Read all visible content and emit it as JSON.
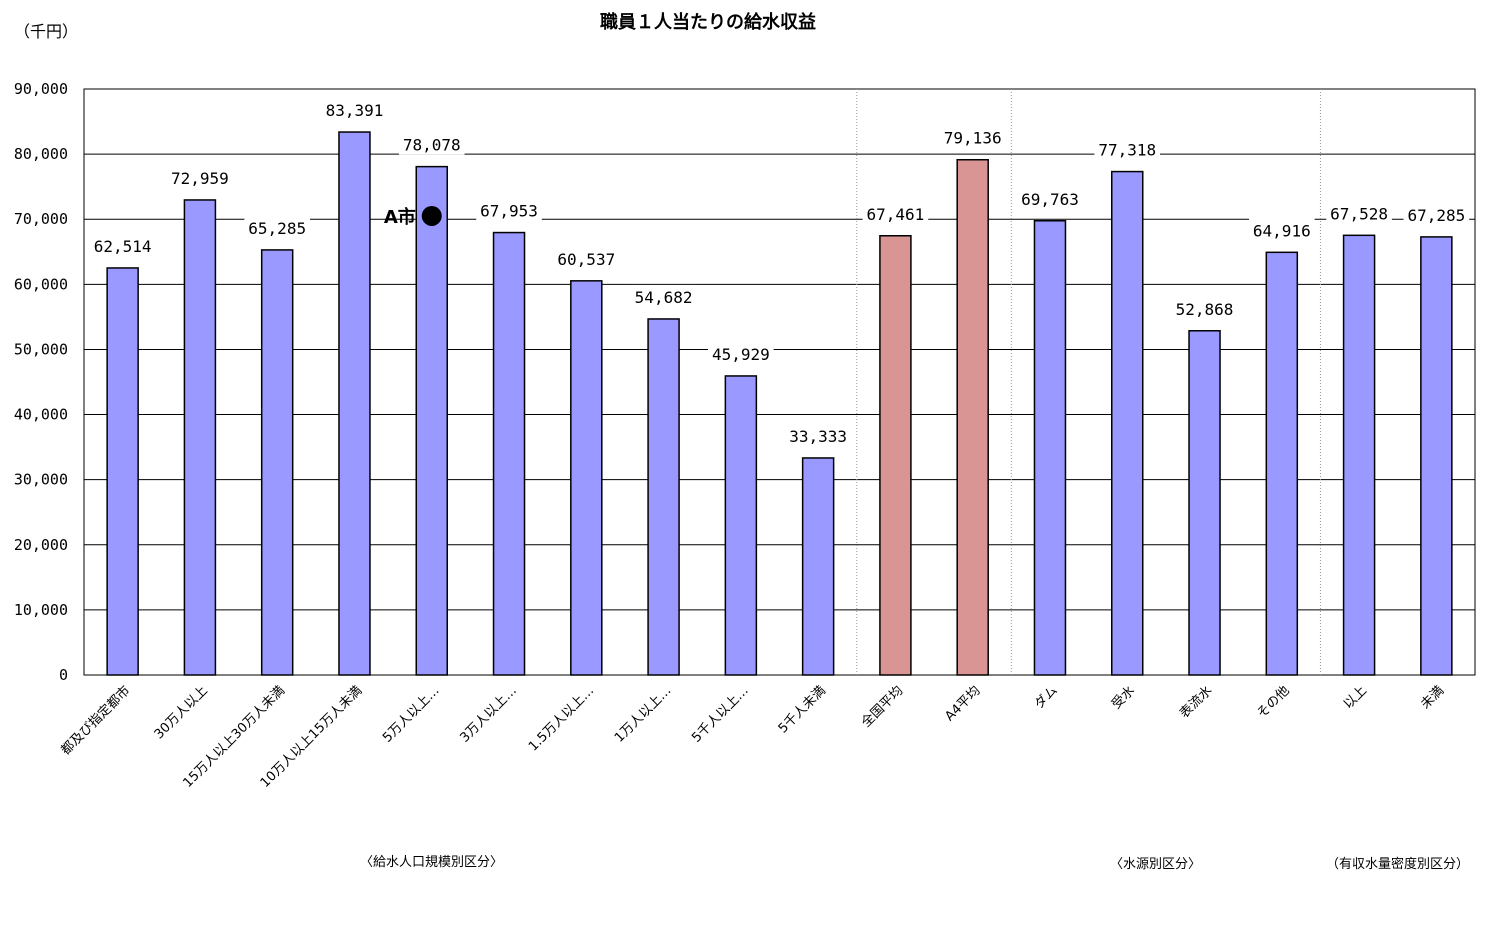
{
  "chart_data": {
    "type": "bar",
    "title": "職員１人当たりの給水収益",
    "unit_label": "（千円）",
    "ylim": [
      0,
      90000
    ],
    "yticks": [
      "0",
      "10,000",
      "20,000",
      "30,000",
      "40,000",
      "50,000",
      "60,000",
      "70,000",
      "80,000",
      "90,000"
    ],
    "grid": true,
    "categories": [
      "都及び指定都市",
      "30万人以上",
      "15万人以上30万人未満",
      "10万人以上15万人未満",
      "5万人以上…",
      "3万人以上…",
      "1.5万人以上…",
      "1万人以上…",
      "5千人以上…",
      "5千人未満",
      "全国平均",
      "A4平均",
      "ダム",
      "受水",
      "表流水",
      "その他",
      "以上",
      "未満"
    ],
    "values": [
      62514,
      72959,
      65285,
      83391,
      78078,
      67953,
      60537,
      54682,
      45929,
      33333,
      67461,
      79136,
      69763,
      77318,
      52868,
      64916,
      67528,
      67285
    ],
    "value_labels": [
      "62,514",
      "72,959",
      "65,285",
      "83,391",
      "78,078",
      "67,953",
      "60,537",
      "54,682",
      "45,929",
      "33,333",
      "67,461",
      "79,136",
      "69,763",
      "77,318",
      "52,868",
      "64,916",
      "67,528",
      "67,285"
    ],
    "highlighted_indices": [
      10,
      11
    ],
    "colors": {
      "bar": "#9999ff",
      "highlight": "#d99594",
      "grid": "#000000",
      "axis": "#000000"
    },
    "annotation": {
      "text": "A市",
      "marker": "black-circle",
      "value": 70500,
      "category_index": 4
    },
    "groups": [
      {
        "label": "〈給水人口規模別区分〉"
      },
      {
        "label": "〈水源別区分〉"
      },
      {
        "label": "（有収水量密度別区分）"
      }
    ]
  }
}
